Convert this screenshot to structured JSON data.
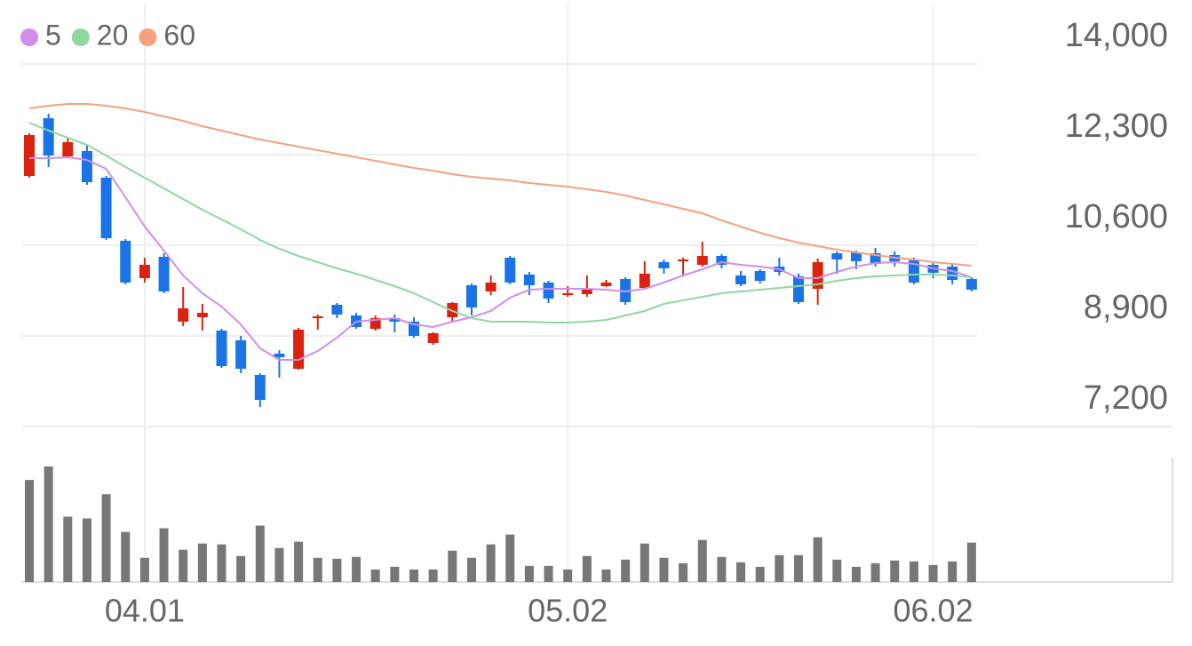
{
  "chart_data": {
    "type": "candlestick",
    "categories": [
      null,
      null,
      null,
      null,
      null,
      null,
      "04.01",
      null,
      null,
      null,
      null,
      null,
      null,
      null,
      null,
      null,
      null,
      null,
      null,
      null,
      null,
      null,
      null,
      null,
      null,
      null,
      null,
      null,
      "05.02",
      null,
      null,
      null,
      null,
      null,
      null,
      null,
      null,
      null,
      null,
      null,
      null,
      null,
      null,
      null,
      null,
      null,
      null,
      "06.02",
      null,
      null
    ],
    "open": [
      11900,
      12983,
      12267,
      12367,
      11867,
      10683,
      9983,
      10383,
      9167,
      9250,
      9000,
      8817,
      8167,
      8567,
      8283,
      9233,
      9483,
      9283,
      9033,
      9233,
      9167,
      8767,
      9250,
      9850,
      9733,
      10367,
      10050,
      9900,
      9667,
      9683,
      9833,
      9967,
      9800,
      10283,
      10300,
      10233,
      10400,
      10033,
      10117,
      10200,
      10017,
      9783,
      10450,
      10467,
      10450,
      10417,
      10317,
      10233,
      10200,
      9967
    ],
    "high": [
      12700,
      13067,
      12600,
      12483,
      11900,
      10717,
      10367,
      10450,
      9817,
      9500,
      9033,
      8900,
      8200,
      8633,
      9050,
      9300,
      9517,
      9333,
      9283,
      9300,
      9250,
      8967,
      9533,
      9883,
      10033,
      10400,
      10100,
      9933,
      9833,
      10033,
      9950,
      10000,
      10300,
      10333,
      10367,
      10667,
      10433,
      10117,
      10150,
      10367,
      10067,
      10350,
      10483,
      10500,
      10550,
      10483,
      10367,
      10267,
      10250,
      10000
    ],
    "low": [
      11867,
      12067,
      12233,
      11733,
      10700,
      9867,
      9900,
      9700,
      9083,
      9000,
      8300,
      8200,
      7567,
      8117,
      8267,
      9017,
      9233,
      9033,
      9000,
      8967,
      8867,
      8733,
      9167,
      9283,
      9667,
      9867,
      9667,
      9517,
      9633,
      9633,
      9817,
      9483,
      9767,
      10067,
      10033,
      10200,
      10167,
      9833,
      9883,
      10033,
      9500,
      9483,
      10067,
      10150,
      10200,
      10200,
      9867,
      9983,
      9867,
      9733
    ],
    "close": [
      12667,
      12283,
      12533,
      11783,
      10733,
      9900,
      10233,
      9733,
      9417,
      9333,
      8333,
      8283,
      7700,
      8500,
      9017,
      9267,
      9300,
      9067,
      9233,
      9167,
      8900,
      8950,
      9517,
      9433,
      9900,
      9900,
      9850,
      9600,
      9700,
      9783,
      9900,
      9533,
      10067,
      10167,
      10333,
      10400,
      10233,
      9867,
      9933,
      10100,
      9533,
      10283,
      10333,
      10300,
      10250,
      10300,
      9900,
      10083,
      9950,
      9767
    ],
    "up_color": "#d9230f",
    "down_color": "#1a74e5",
    "series": [
      {
        "name": "5",
        "color": "#d08de9",
        "values": [
          12233,
          12233,
          12250,
          12200,
          12033,
          11500,
          10950,
          10500,
          10033,
          9700,
          9450,
          9117,
          8667,
          8450,
          8450,
          8617,
          8867,
          9167,
          9200,
          9233,
          9117,
          9067,
          9167,
          9250,
          9367,
          9617,
          9767,
          9783,
          9783,
          9783,
          9767,
          9733,
          9783,
          9900,
          10033,
          10150,
          10283,
          10233,
          10200,
          10150,
          9983,
          9983,
          10100,
          10200,
          10267,
          10283,
          10250,
          10167,
          10117,
          10000
        ]
      },
      {
        "name": "20",
        "color": "#8fd7a2",
        "values": [
          12900,
          12750,
          12617,
          12483,
          12283,
          12067,
          11867,
          11667,
          11467,
          11267,
          11083,
          10900,
          10700,
          10533,
          10400,
          10283,
          10167,
          10067,
          9950,
          9833,
          9700,
          9533,
          9367,
          9233,
          9167,
          9167,
          9167,
          9150,
          9150,
          9167,
          9200,
          9283,
          9367,
          9500,
          9567,
          9633,
          9700,
          9733,
          9767,
          9800,
          9833,
          9867,
          9933,
          9983,
          10017,
          10033,
          10050,
          10050,
          10033,
          10000
        ]
      },
      {
        "name": "60",
        "color": "#f4a27e",
        "values": [
          13167,
          13217,
          13250,
          13250,
          13217,
          13167,
          13100,
          13017,
          12933,
          12833,
          12750,
          12667,
          12583,
          12517,
          12450,
          12383,
          12317,
          12250,
          12183,
          12117,
          12050,
          12000,
          11933,
          11883,
          11850,
          11817,
          11767,
          11733,
          11700,
          11650,
          11600,
          11533,
          11450,
          11367,
          11283,
          11200,
          11067,
          10950,
          10833,
          10733,
          10650,
          10583,
          10517,
          10467,
          10417,
          10367,
          10333,
          10283,
          10250,
          10217
        ]
      }
    ],
    "volume": {
      "color": "#777777",
      "values": [
        114,
        129,
        73,
        71,
        98,
        56,
        27,
        60,
        36,
        43,
        42,
        29,
        63,
        38,
        45,
        27,
        26,
        28,
        14,
        17,
        14,
        14,
        35,
        27,
        42,
        53,
        18,
        18,
        14,
        29,
        14,
        25,
        43,
        27,
        21,
        47,
        28,
        22,
        17,
        30,
        30,
        50,
        25,
        17,
        21,
        24,
        23,
        19,
        23,
        44
      ]
    },
    "ylim": [
      7200,
      14000
    ],
    "yticks": [
      {
        "value": 14000,
        "label": "14,000"
      },
      {
        "value": 12300,
        "label": "12,300"
      },
      {
        "value": 10600,
        "label": "10,600"
      },
      {
        "value": 8900,
        "label": "8,900"
      },
      {
        "value": 7200,
        "label": "7,200"
      }
    ],
    "grid": true
  }
}
